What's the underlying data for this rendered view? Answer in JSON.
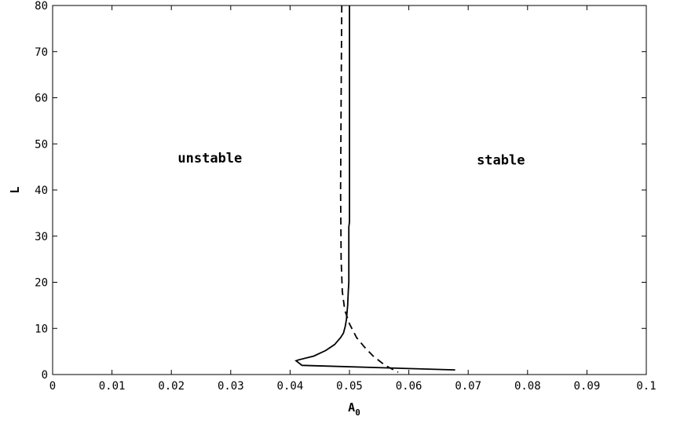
{
  "chart_data": {
    "type": "line",
    "xlabel": "A",
    "xlabel_sub": "0",
    "ylabel": "L",
    "xlim": [
      0,
      0.1
    ],
    "ylim": [
      0,
      80
    ],
    "xticks": [
      "0",
      "0.01",
      "0.02",
      "0.03",
      "0.04",
      "0.05",
      "0.06",
      "0.07",
      "0.08",
      "0.09",
      "0.1"
    ],
    "yticks": [
      "0",
      "10",
      "20",
      "30",
      "40",
      "50",
      "60",
      "70",
      "80"
    ],
    "grid": false,
    "annotations": [
      {
        "text": "unstable",
        "x": 0.0265,
        "y": 46
      },
      {
        "text": "stable",
        "x": 0.0755,
        "y": 45.5
      }
    ],
    "series": [
      {
        "style": "solid",
        "x": [
          0.05,
          0.05,
          0.0499,
          0.0499,
          0.0498,
          0.0497,
          0.0495,
          0.0493,
          0.049,
          0.0485,
          0.0475,
          0.046,
          0.044,
          0.0415,
          0.041,
          0.042,
          0.0678
        ],
        "y": [
          80,
          33,
          32,
          20,
          18,
          15,
          12,
          10.5,
          9,
          8,
          6.5,
          5.2,
          4,
          3.2,
          3,
          2,
          1
        ]
      },
      {
        "style": "dashed",
        "x": [
          0.0487,
          0.0486,
          0.0485,
          0.0486,
          0.0488,
          0.0492,
          0.05,
          0.0512,
          0.0525,
          0.054,
          0.056,
          0.0582
        ],
        "y": [
          80,
          60,
          40,
          25,
          18,
          14,
          11,
          8,
          6,
          4,
          2,
          0.5
        ]
      }
    ]
  }
}
